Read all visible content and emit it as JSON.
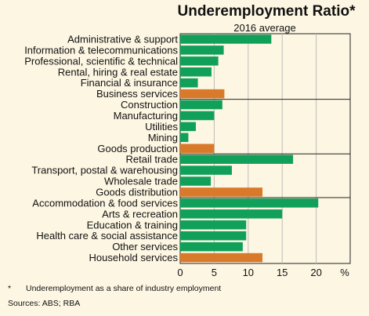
{
  "chart_data": {
    "type": "bar",
    "orientation": "horizontal",
    "title": "Underemployment Ratio*",
    "subtitle": "2016 average",
    "unit_label": "%",
    "xlim": [
      0,
      25
    ],
    "xticks": [
      "0",
      "5",
      "10",
      "15",
      "20"
    ],
    "grid": true,
    "colors": {
      "industry": "#10a05a",
      "aggregate": "#d97a2b",
      "background": "#fdf6e3"
    },
    "groups": [
      {
        "bars": [
          {
            "label": "Administrative & support",
            "value": 13.4,
            "kind": "industry"
          },
          {
            "label": "Information & telecommunications",
            "value": 6.4,
            "kind": "industry"
          },
          {
            "label": "Professional, scientific & technical",
            "value": 5.6,
            "kind": "industry"
          },
          {
            "label": "Rental, hiring & real estate",
            "value": 4.6,
            "kind": "industry"
          },
          {
            "label": "Financial & insurance",
            "value": 2.6,
            "kind": "industry"
          },
          {
            "label": "Business services",
            "value": 6.5,
            "kind": "aggregate"
          }
        ]
      },
      {
        "bars": [
          {
            "label": "Construction",
            "value": 6.2,
            "kind": "industry"
          },
          {
            "label": "Manufacturing",
            "value": 5.0,
            "kind": "industry"
          },
          {
            "label": "Utilities",
            "value": 2.3,
            "kind": "industry"
          },
          {
            "label": "Mining",
            "value": 1.2,
            "kind": "industry"
          },
          {
            "label": "Goods production",
            "value": 5.0,
            "kind": "aggregate"
          }
        ]
      },
      {
        "bars": [
          {
            "label": "Retail trade",
            "value": 16.6,
            "kind": "industry"
          },
          {
            "label": "Transport, postal & warehousing",
            "value": 7.6,
            "kind": "industry"
          },
          {
            "label": "Wholesale trade",
            "value": 4.5,
            "kind": "industry"
          },
          {
            "label": "Goods distribution",
            "value": 12.1,
            "kind": "aggregate"
          }
        ]
      },
      {
        "bars": [
          {
            "label": "Accommodation & food services",
            "value": 20.3,
            "kind": "industry"
          },
          {
            "label": "Arts & recreation",
            "value": 15.0,
            "kind": "industry"
          },
          {
            "label": "Education & training",
            "value": 9.7,
            "kind": "industry"
          },
          {
            "label": "Health care & social assistance",
            "value": 9.7,
            "kind": "industry"
          },
          {
            "label": "Other services",
            "value": 9.2,
            "kind": "industry"
          },
          {
            "label": "Household services",
            "value": 12.1,
            "kind": "aggregate"
          }
        ]
      }
    ]
  },
  "footnote": {
    "marker": "*",
    "text": "Underemployment as a share of industry employment"
  },
  "sources": "Sources:   ABS; RBA"
}
